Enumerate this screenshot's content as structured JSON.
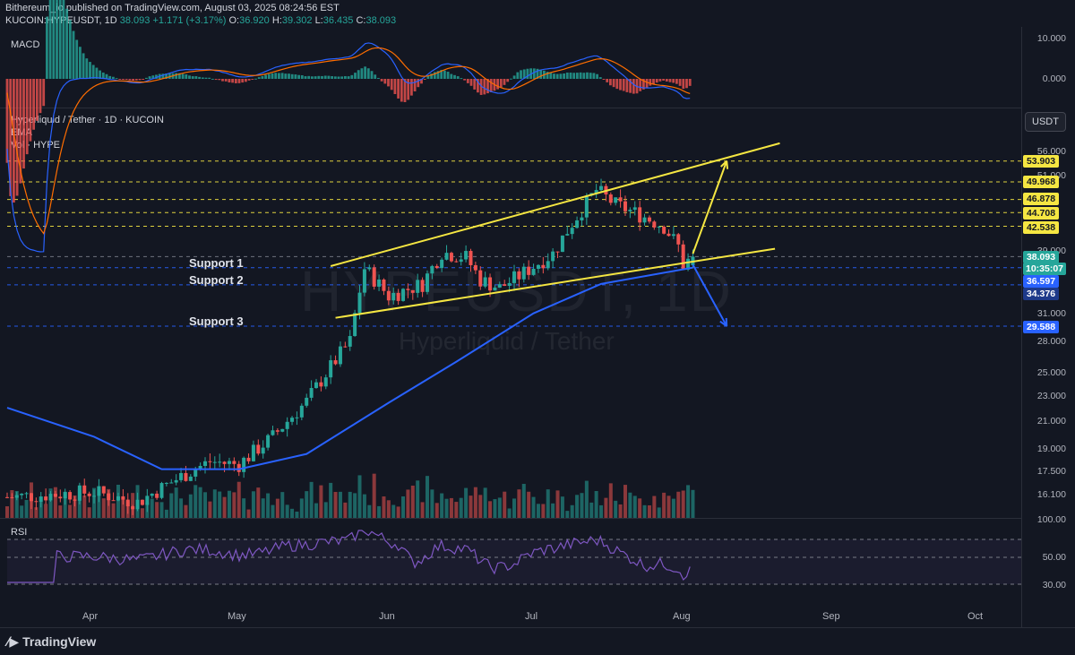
{
  "header": {
    "publisher": "Bithereum_io published on TradingView.com, August 03, 2025 08:24:56 EST",
    "symbol": "KUCOIN:HYPEUSDT, 1D",
    "last": "38.093",
    "change": "+1.171 (+3.17%)",
    "o_label": "O:",
    "o_value": "36.920",
    "h_label": "H:",
    "h_value": "39.302",
    "l_label": "L:",
    "l_value": "36.435",
    "c_label": "C:",
    "c_value": "38.093"
  },
  "macd_panel": {
    "label": "MACD",
    "ticks": [
      "10.000",
      "0.000"
    ]
  },
  "main_panel": {
    "title": "Hyperliquid / Tether · 1D · KUCOIN",
    "ema_label": "EMA",
    "vol_label": "Vol · HYPE",
    "currency_button": "USDT",
    "watermark_symbol": "HYPEUSDT, 1D",
    "watermark_name": "Hyperliquid / Tether",
    "support_labels": [
      "Support 1",
      "Support 2",
      "Support 3"
    ],
    "price_ticks": [
      "56.000",
      "51.000",
      "39.000",
      "31.000",
      "28.000",
      "25.000",
      "23.000",
      "21.000",
      "19.000",
      "17.500",
      "16.100"
    ],
    "level_labels": [
      {
        "text": "53.903",
        "kind": "resistance"
      },
      {
        "text": "49.968",
        "kind": "resistance"
      },
      {
        "text": "46.878",
        "kind": "resistance"
      },
      {
        "text": "44.708",
        "kind": "resistance"
      },
      {
        "text": "42.538",
        "kind": "resistance"
      },
      {
        "text": "38.093",
        "kind": "last"
      },
      {
        "text": "10:35:07",
        "kind": "timer"
      },
      {
        "text": "36.597",
        "kind": "support"
      },
      {
        "text": "34.376",
        "kind": "support"
      },
      {
        "text": "29.588",
        "kind": "support"
      }
    ]
  },
  "rsi_panel": {
    "label": "RSI",
    "ticks": [
      "100.00",
      "50.00",
      "30.00"
    ]
  },
  "time_axis": [
    "Apr",
    "May",
    "Jun",
    "Jul",
    "Aug",
    "Sep",
    "Oct"
  ],
  "footer": {
    "brand": "TradingView"
  },
  "colors": {
    "background": "#131722",
    "up": "#26a69a",
    "down": "#ef5350",
    "ema": "#2962ff",
    "trendline": "#f5e642",
    "support_level": "#2962ff",
    "rsi": "#7e57c2"
  },
  "chart_data": {
    "type": "candlestick",
    "title": "Hyperliquid / Tether · 1D · KUCOIN",
    "y_scale": "log",
    "ylim": [
      15.5,
      60
    ],
    "x_range": [
      "2025-03-14",
      "2025-10-10"
    ],
    "levels": [
      53.903,
      49.968,
      46.878,
      44.708,
      42.538,
      38.093,
      36.597,
      34.376,
      29.588
    ],
    "close_path": [
      [
        "2025-03-14",
        15.9
      ],
      [
        "2025-04-01",
        16.2
      ],
      [
        "2025-04-10",
        15.6
      ],
      [
        "2025-04-20",
        17.3
      ],
      [
        "2025-04-25",
        18.1
      ],
      [
        "2025-05-01",
        17.9
      ],
      [
        "2025-05-08",
        19.8
      ],
      [
        "2025-05-15",
        22.5
      ],
      [
        "2025-05-20",
        25.5
      ],
      [
        "2025-05-24",
        28.0
      ],
      [
        "2025-05-27",
        36.5
      ],
      [
        "2025-06-01",
        33.0
      ],
      [
        "2025-06-08",
        34.5
      ],
      [
        "2025-06-12",
        38.7
      ],
      [
        "2025-06-17",
        38.0
      ],
      [
        "2025-06-20",
        35.0
      ],
      [
        "2025-06-24",
        34.0
      ],
      [
        "2025-06-28",
        35.5
      ],
      [
        "2025-07-05",
        38.5
      ],
      [
        "2025-07-09",
        43.0
      ],
      [
        "2025-07-14",
        48.5
      ],
      [
        "2025-07-18",
        46.0
      ],
      [
        "2025-07-24",
        44.0
      ],
      [
        "2025-07-28",
        42.5
      ],
      [
        "2025-07-31",
        39.5
      ],
      [
        "2025-08-01",
        36.9
      ],
      [
        "2025-08-03",
        38.093
      ]
    ],
    "ema": [
      [
        "2025-03-14",
        22.0
      ],
      [
        "2025-04-01",
        19.8
      ],
      [
        "2025-04-15",
        17.6
      ],
      [
        "2025-05-01",
        17.6
      ],
      [
        "2025-05-15",
        18.6
      ],
      [
        "2025-06-01",
        22.4
      ],
      [
        "2025-06-15",
        26.0
      ],
      [
        "2025-07-01",
        31.0
      ],
      [
        "2025-07-15",
        34.5
      ],
      [
        "2025-08-03",
        36.6
      ]
    ],
    "trendlines": [
      {
        "name": "",
        "points": [
          [
            "2025-05-20",
            36.8
          ],
          [
            "2025-08-21",
            57.5
          ]
        ]
      },
      {
        "name": "",
        "points": [
          [
            "2025-05-21",
            30.5
          ],
          [
            "2025-08-20",
            39.2
          ]
        ]
      }
    ],
    "projections": [
      {
        "direction": "up",
        "points": [
          [
            "2025-08-03",
            38.5
          ],
          [
            "2025-08-10",
            53.9
          ]
        ]
      },
      {
        "direction": "down",
        "points": [
          [
            "2025-08-03",
            37.0
          ],
          [
            "2025-08-10",
            29.6
          ]
        ]
      }
    ],
    "rsi": {
      "ylim": [
        0,
        100
      ],
      "levels": [
        70,
        50,
        30
      ],
      "last": 44
    }
  }
}
